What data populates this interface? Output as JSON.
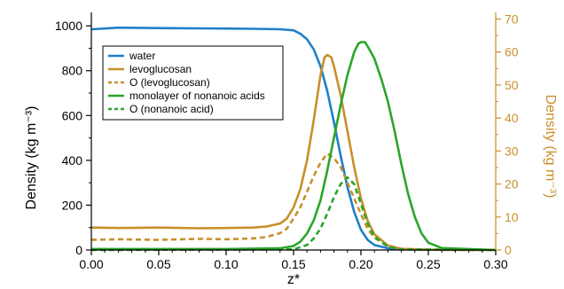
{
  "chart_data": {
    "type": "line",
    "title": "",
    "xlabel": "z*",
    "ylabel_left": "Density (kg m⁻³)",
    "ylabel_right": "Density (kg m⁻³)",
    "xlim": [
      0,
      0.3
    ],
    "ylim_left": [
      0,
      1060
    ],
    "ylim_right": [
      0,
      72
    ],
    "x_ticks": [
      "0.00",
      "0.05",
      "0.10",
      "0.15",
      "0.20",
      "0.25",
      "0.30"
    ],
    "y_left_ticks": [
      "0",
      "200",
      "400",
      "600",
      "800",
      "1000"
    ],
    "y_right_ticks": [
      "0",
      "10",
      "20",
      "30",
      "40",
      "50",
      "60",
      "70"
    ],
    "grid": false,
    "legend_position": "upper-left",
    "colors": {
      "blue": "#1f7fc8",
      "gold": "#c8902a",
      "green": "#2aa52a",
      "right_axis": "#c8902a"
    },
    "series": [
      {
        "name": "water",
        "axis": "left",
        "color": "#1f7fc8",
        "dash": false,
        "points": [
          [
            0.0,
            985
          ],
          [
            0.02,
            992
          ],
          [
            0.05,
            990
          ],
          [
            0.08,
            989
          ],
          [
            0.1,
            988
          ],
          [
            0.12,
            987
          ],
          [
            0.14,
            985
          ],
          [
            0.15,
            980
          ],
          [
            0.155,
            965
          ],
          [
            0.16,
            940
          ],
          [
            0.165,
            895
          ],
          [
            0.17,
            820
          ],
          [
            0.175,
            710
          ],
          [
            0.18,
            570
          ],
          [
            0.185,
            420
          ],
          [
            0.19,
            280
          ],
          [
            0.195,
            170
          ],
          [
            0.2,
            90
          ],
          [
            0.205,
            45
          ],
          [
            0.21,
            22
          ],
          [
            0.22,
            8
          ],
          [
            0.23,
            3
          ],
          [
            0.25,
            1
          ],
          [
            0.3,
            0
          ]
        ]
      },
      {
        "name": "levoglucosan",
        "axis": "left",
        "color": "#c8902a",
        "dash": false,
        "points": [
          [
            0.0,
            100
          ],
          [
            0.02,
            98
          ],
          [
            0.05,
            100
          ],
          [
            0.08,
            97
          ],
          [
            0.1,
            98
          ],
          [
            0.12,
            100
          ],
          [
            0.13,
            105
          ],
          [
            0.14,
            118
          ],
          [
            0.145,
            140
          ],
          [
            0.15,
            190
          ],
          [
            0.155,
            270
          ],
          [
            0.16,
            400
          ],
          [
            0.165,
            580
          ],
          [
            0.17,
            780
          ],
          [
            0.173,
            860
          ],
          [
            0.175,
            870
          ],
          [
            0.178,
            860
          ],
          [
            0.18,
            820
          ],
          [
            0.185,
            690
          ],
          [
            0.19,
            530
          ],
          [
            0.195,
            370
          ],
          [
            0.2,
            230
          ],
          [
            0.205,
            130
          ],
          [
            0.21,
            70
          ],
          [
            0.22,
            20
          ],
          [
            0.23,
            5
          ],
          [
            0.25,
            1
          ],
          [
            0.3,
            0
          ]
        ]
      },
      {
        "name": "O (levoglucosan)",
        "axis": "left",
        "color": "#c8902a",
        "dash": true,
        "points": [
          [
            0.0,
            45
          ],
          [
            0.02,
            48
          ],
          [
            0.05,
            45
          ],
          [
            0.08,
            50
          ],
          [
            0.1,
            48
          ],
          [
            0.12,
            52
          ],
          [
            0.13,
            58
          ],
          [
            0.14,
            75
          ],
          [
            0.145,
            95
          ],
          [
            0.15,
            140
          ],
          [
            0.155,
            190
          ],
          [
            0.16,
            260
          ],
          [
            0.165,
            330
          ],
          [
            0.17,
            390
          ],
          [
            0.175,
            430
          ],
          [
            0.18,
            410
          ],
          [
            0.185,
            370
          ],
          [
            0.19,
            300
          ],
          [
            0.195,
            230
          ],
          [
            0.2,
            160
          ],
          [
            0.205,
            95
          ],
          [
            0.21,
            55
          ],
          [
            0.22,
            18
          ],
          [
            0.23,
            5
          ],
          [
            0.25,
            1
          ],
          [
            0.3,
            0
          ]
        ]
      },
      {
        "name": "monolayer of nonanoic acids",
        "axis": "right",
        "color": "#2aa52a",
        "dash": false,
        "points": [
          [
            0.0,
            0.3
          ],
          [
            0.1,
            0.3
          ],
          [
            0.14,
            0.5
          ],
          [
            0.15,
            1.2
          ],
          [
            0.155,
            2.5
          ],
          [
            0.16,
            5.0
          ],
          [
            0.165,
            9.0
          ],
          [
            0.17,
            15.0
          ],
          [
            0.175,
            24.0
          ],
          [
            0.18,
            34.0
          ],
          [
            0.185,
            44.0
          ],
          [
            0.19,
            53.0
          ],
          [
            0.195,
            60.0
          ],
          [
            0.198,
            62.5
          ],
          [
            0.2,
            63.0
          ],
          [
            0.203,
            63.0
          ],
          [
            0.206,
            61.0
          ],
          [
            0.21,
            58.0
          ],
          [
            0.215,
            52.0
          ],
          [
            0.22,
            45.0
          ],
          [
            0.225,
            36.0
          ],
          [
            0.23,
            26.0
          ],
          [
            0.235,
            17.0
          ],
          [
            0.24,
            10.0
          ],
          [
            0.245,
            5.0
          ],
          [
            0.25,
            2.2
          ],
          [
            0.26,
            0.6
          ],
          [
            0.3,
            0
          ]
        ]
      },
      {
        "name": "O (nonanoic acid)",
        "axis": "right",
        "color": "#2aa52a",
        "dash": true,
        "points": [
          [
            0.0,
            0
          ],
          [
            0.15,
            0.2
          ],
          [
            0.16,
            1.5
          ],
          [
            0.165,
            3.5
          ],
          [
            0.17,
            6.5
          ],
          [
            0.175,
            11.0
          ],
          [
            0.18,
            16.0
          ],
          [
            0.185,
            20.0
          ],
          [
            0.19,
            22.0
          ],
          [
            0.195,
            20.0
          ],
          [
            0.2,
            14.0
          ],
          [
            0.205,
            8.0
          ],
          [
            0.21,
            4.0
          ],
          [
            0.22,
            1.0
          ],
          [
            0.23,
            0.2
          ],
          [
            0.3,
            0
          ]
        ]
      }
    ]
  }
}
